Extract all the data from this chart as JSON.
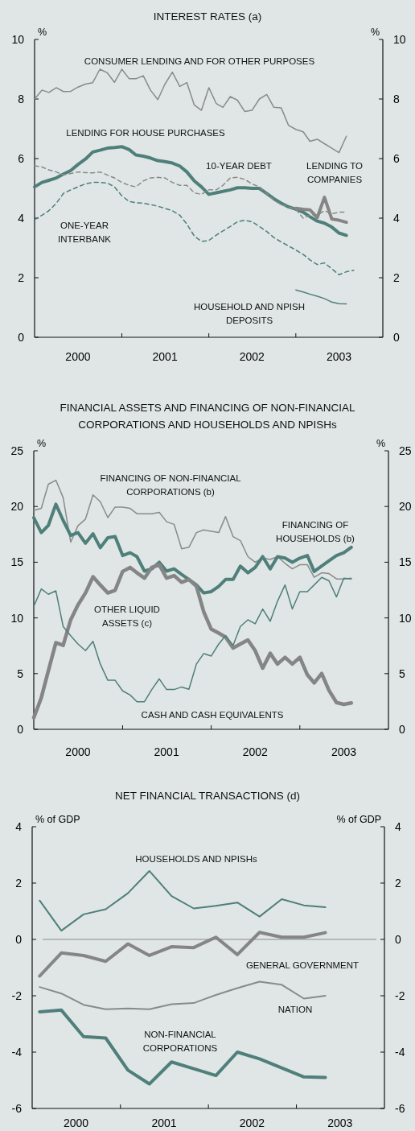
{
  "chart_data": [
    {
      "type": "line",
      "title": "INTEREST RATES (a)",
      "ylabel": "%",
      "y2label": "%",
      "ylim": [
        0,
        10
      ],
      "yticks": [
        0,
        2,
        4,
        6,
        8,
        10
      ],
      "y2lim": [
        0,
        10
      ],
      "y2ticks": [
        0,
        2,
        4,
        6,
        8,
        10
      ],
      "xlim": [
        "2000",
        "2004"
      ],
      "xticks": [
        {
          "value": "2000-07",
          "label": "2000"
        },
        {
          "value": "2001",
          "label": null
        },
        {
          "value": "2001-07",
          "label": "2001"
        },
        {
          "value": "2002",
          "label": null
        },
        {
          "value": "2002-07",
          "label": "2002"
        },
        {
          "value": "2003",
          "label": null
        },
        {
          "value": "2003-07",
          "label": "2003"
        }
      ],
      "x": [
        "2000-01",
        "2000-02",
        "2000-03",
        "2000-04",
        "2000-05",
        "2000-06",
        "2000-07",
        "2000-08",
        "2000-09",
        "2000-10",
        "2000-11",
        "2000-12",
        "2001-01",
        "2001-02",
        "2001-03",
        "2001-04",
        "2001-05",
        "2001-06",
        "2001-07",
        "2001-08",
        "2001-09",
        "2001-10",
        "2001-11",
        "2001-12",
        "2002-01",
        "2002-02",
        "2002-03",
        "2002-04",
        "2002-05",
        "2002-06",
        "2002-07",
        "2002-08",
        "2002-09",
        "2002-10",
        "2002-11",
        "2002-12",
        "2003-01",
        "2003-02",
        "2003-03",
        "2003-04",
        "2003-05",
        "2003-06",
        "2003-07",
        "2003-08",
        "2003-09"
      ],
      "series": [
        {
          "name": "CONSUMER LENDING AND FOR OTHER PURPOSES",
          "color": "#8a8a8a",
          "values": [
            8.0,
            8.3,
            8.22,
            8.38,
            8.25,
            8.26,
            8.4,
            8.5,
            8.55,
            9.0,
            8.88,
            8.56,
            9.0,
            8.68,
            8.68,
            8.78,
            8.3,
            7.98,
            8.5,
            8.9,
            8.42,
            8.55,
            7.8,
            7.62,
            8.38,
            7.85,
            7.72,
            8.08,
            7.96,
            7.58,
            7.62,
            8.0,
            8.15,
            7.72,
            7.7,
            7.12,
            6.98,
            6.9,
            6.58,
            6.65,
            6.5,
            6.35,
            6.2,
            6.75,
            null
          ]
        },
        {
          "name": "LENDING FOR HOUSE PURCHASES",
          "color": "#4f7f7a",
          "values": [
            5.05,
            5.2,
            5.27,
            5.35,
            5.48,
            5.6,
            5.8,
            5.98,
            6.22,
            6.28,
            6.35,
            6.37,
            6.4,
            6.3,
            6.12,
            6.08,
            6.02,
            5.93,
            5.9,
            5.85,
            5.75,
            5.55,
            5.25,
            5.05,
            4.8,
            4.85,
            4.9,
            4.95,
            5.02,
            5.02,
            5.0,
            5.0,
            4.83,
            4.65,
            4.5,
            4.38,
            4.3,
            4.2,
            4.05,
            3.9,
            3.83,
            3.7,
            3.5,
            3.42,
            null
          ]
        },
        {
          "name": "10-YEAR DEBT",
          "color": "#8a8a8a",
          "line_style": "dashed",
          "values": [
            5.76,
            5.72,
            5.62,
            5.55,
            5.45,
            5.5,
            5.55,
            5.53,
            5.52,
            5.55,
            5.45,
            5.35,
            5.2,
            5.1,
            5.05,
            5.25,
            5.35,
            5.37,
            5.35,
            5.2,
            5.1,
            5.1,
            4.85,
            4.8,
            4.95,
            4.95,
            5.1,
            5.35,
            5.37,
            5.3,
            5.15,
            5.05,
            4.83,
            4.6,
            4.45,
            4.38,
            4.3,
            4.0,
            4.1,
            4.1,
            4.25,
            4.15,
            4.2,
            4.2,
            null
          ]
        },
        {
          "name": "LENDING TO COMPANIES",
          "color": "#858585",
          "values": [
            null,
            null,
            null,
            null,
            null,
            null,
            null,
            null,
            null,
            null,
            null,
            null,
            null,
            null,
            null,
            null,
            null,
            null,
            null,
            null,
            null,
            null,
            null,
            null,
            null,
            null,
            null,
            null,
            null,
            null,
            null,
            null,
            null,
            null,
            null,
            null,
            4.33,
            4.3,
            4.28,
            4.02,
            4.7,
            3.97,
            3.93,
            3.86,
            null
          ]
        },
        {
          "name": "ONE-YEAR INTERBANK",
          "color": "#4f7f7a",
          "line_style": "dashed",
          "values": [
            3.95,
            4.1,
            4.25,
            4.5,
            4.83,
            4.95,
            5.05,
            5.15,
            5.2,
            5.2,
            5.18,
            5.05,
            4.75,
            4.56,
            4.52,
            4.5,
            4.46,
            4.4,
            4.33,
            4.25,
            4.1,
            3.8,
            3.4,
            3.22,
            3.25,
            3.43,
            3.57,
            3.72,
            3.88,
            3.93,
            3.88,
            3.72,
            3.55,
            3.35,
            3.2,
            3.07,
            2.93,
            2.78,
            2.6,
            2.44,
            2.5,
            2.3,
            2.1,
            2.2,
            2.25
          ]
        },
        {
          "name": "HOUSEHOLD AND NPISH DEPOSITS",
          "color": "#4f7f7a",
          "values": [
            null,
            null,
            null,
            null,
            null,
            null,
            null,
            null,
            null,
            null,
            null,
            null,
            null,
            null,
            null,
            null,
            null,
            null,
            null,
            null,
            null,
            null,
            null,
            null,
            null,
            null,
            null,
            null,
            null,
            null,
            null,
            null,
            null,
            null,
            null,
            null,
            1.59,
            1.52,
            1.45,
            1.38,
            1.3,
            1.18,
            1.13,
            1.12,
            null
          ]
        }
      ]
    },
    {
      "type": "line",
      "title": "FINANCIAL ASSETS AND FINANCING OF NON-FINANCIAL CORPORATIONS AND HOUSEHOLDS AND NPISHs",
      "ylabel": "%",
      "y2label": "%",
      "ylim": [
        0,
        25
      ],
      "yticks": [
        0,
        5,
        10,
        15,
        20,
        25
      ],
      "y2lim": [
        0,
        25
      ],
      "y2ticks": [
        0,
        5,
        10,
        15,
        20,
        25
      ],
      "xlim": [
        "2000",
        "2004"
      ],
      "xticks": [
        {
          "value": "2000-07",
          "label": "2000"
        },
        {
          "value": "2001",
          "label": null
        },
        {
          "value": "2001-07",
          "label": "2001"
        },
        {
          "value": "2002",
          "label": null
        },
        {
          "value": "2002-07",
          "label": "2002"
        },
        {
          "value": "2003",
          "label": null
        },
        {
          "value": "2003-07",
          "label": "2003"
        }
      ],
      "x": [
        "2000-01",
        "2000-02",
        "2000-03",
        "2000-04",
        "2000-05",
        "2000-06",
        "2000-07",
        "2000-08",
        "2000-09",
        "2000-10",
        "2000-11",
        "2000-12",
        "2001-01",
        "2001-02",
        "2001-03",
        "2001-04",
        "2001-05",
        "2001-06",
        "2001-07",
        "2001-08",
        "2001-09",
        "2001-10",
        "2001-11",
        "2001-12",
        "2002-01",
        "2002-02",
        "2002-03",
        "2002-04",
        "2002-05",
        "2002-06",
        "2002-07",
        "2002-08",
        "2002-09",
        "2002-10",
        "2002-11",
        "2002-12",
        "2003-01",
        "2003-02",
        "2003-03",
        "2003-04",
        "2003-05",
        "2003-06",
        "2003-07",
        "2003-08"
      ],
      "series": [
        {
          "name": "FINANCING OF NON-FINANCIAL CORPORATIONS (b)",
          "color": "#8a8a8a",
          "values": [
            19.66,
            19.83,
            22.0,
            22.36,
            20.8,
            16.8,
            18.27,
            18.87,
            21.04,
            20.43,
            19.0,
            19.95,
            19.95,
            19.83,
            19.35,
            19.35,
            19.35,
            19.47,
            18.63,
            18.4,
            16.2,
            16.34,
            17.66,
            17.9,
            17.78,
            17.66,
            19.1,
            17.3,
            16.94,
            15.5,
            15.0,
            15.37,
            15.25,
            15.5,
            14.9,
            14.4,
            14.77,
            14.77,
            13.64,
            14.05,
            13.98,
            13.5,
            13.5,
            13.57
          ]
        },
        {
          "name": "FINANCING OF HOUSEHOLDS (b)",
          "color": "#4f7f7a",
          "values": [
            19.0,
            17.66,
            18.3,
            20.2,
            18.75,
            17.4,
            17.66,
            16.7,
            17.55,
            16.3,
            17.2,
            17.3,
            15.6,
            15.85,
            15.5,
            14.2,
            14.4,
            15.0,
            14.2,
            14.4,
            13.9,
            13.45,
            12.96,
            12.24,
            12.36,
            12.84,
            13.45,
            13.45,
            14.65,
            14.05,
            14.53,
            15.5,
            14.4,
            15.5,
            15.37,
            15.0,
            15.37,
            15.6,
            14.17,
            14.65,
            15.13,
            15.6,
            15.85,
            16.34
          ]
        },
        {
          "name": "OTHER LIQUID ASSETS (c)",
          "color": "#858585",
          "values": [
            1.04,
            2.84,
            5.25,
            7.78,
            7.54,
            9.83,
            11.16,
            12.24,
            13.69,
            12.96,
            12.24,
            12.48,
            14.17,
            14.53,
            14.05,
            13.57,
            14.53,
            14.77,
            13.57,
            13.8,
            13.2,
            13.45,
            12.84,
            10.55,
            8.99,
            8.63,
            8.27,
            7.3,
            7.66,
            8.02,
            7.06,
            5.49,
            6.82,
            5.86,
            6.46,
            5.86,
            6.46,
            4.89,
            4.17,
            5.01,
            3.5,
            2.4,
            2.24,
            2.36
          ]
        },
        {
          "name": "CASH AND CASH EQUIVALENTS",
          "color": "#4f7f7a",
          "values": [
            11.04,
            12.6,
            12.12,
            12.43,
            9.23,
            8.4,
            7.66,
            7.06,
            7.9,
            5.86,
            4.4,
            4.4,
            3.45,
            3.08,
            2.48,
            2.48,
            3.57,
            4.53,
            3.57,
            3.57,
            3.8,
            3.6,
            5.86,
            6.8,
            6.58,
            7.66,
            8.4,
            7.54,
            9.23,
            9.83,
            9.47,
            10.8,
            9.7,
            11.5,
            12.96,
            10.8,
            12.36,
            12.36,
            12.96,
            13.64,
            13.33,
            11.88,
            13.57,
            13.5
          ]
        }
      ]
    },
    {
      "type": "line",
      "title": "NET FINANCIAL TRANSACTIONS (d)",
      "ylabel": "% of GDP",
      "y2label": "% of GDP",
      "ylim": [
        -6,
        4
      ],
      "yticks": [
        -6,
        -4,
        -2,
        0,
        2,
        4
      ],
      "y2lim": [
        -6,
        4
      ],
      "y2ticks": [
        -6,
        -4,
        -2,
        0,
        2,
        4
      ],
      "xlim": [
        "2000",
        "2004"
      ],
      "xticks": [
        {
          "value": "2000-07",
          "label": "2000"
        },
        {
          "value": "2001",
          "label": null
        },
        {
          "value": "2001-07",
          "label": "2001"
        },
        {
          "value": "2002",
          "label": null
        },
        {
          "value": "2002-07",
          "label": "2002"
        },
        {
          "value": "2003",
          "label": null
        },
        {
          "value": "2003-07",
          "label": "2003"
        }
      ],
      "x": [
        "2000-02",
        "2000-05",
        "2000-08",
        "2000-11",
        "2001-02",
        "2001-05",
        "2001-08",
        "2001-11",
        "2002-02",
        "2002-05",
        "2002-08",
        "2002-11",
        "2003-02",
        "2003-05"
      ],
      "ref_lines": [
        {
          "axis": "y",
          "value": 0,
          "color": "#8a8a8a"
        }
      ],
      "series": [
        {
          "name": "HOUSEHOLDS AND NPISHs",
          "color": "#4f7f7a",
          "values": [
            1.38,
            0.31,
            0.89,
            1.07,
            1.64,
            2.43,
            1.54,
            1.1,
            1.19,
            1.31,
            0.81,
            1.43,
            1.21,
            1.14
          ]
        },
        {
          "name": "GENERAL GOVERNMENT",
          "color": "#858585",
          "values": [
            -1.3,
            -0.48,
            -0.57,
            -0.78,
            -0.16,
            -0.57,
            -0.26,
            -0.29,
            0.08,
            -0.54,
            0.25,
            0.08,
            0.08,
            0.24
          ]
        },
        {
          "name": "NATION",
          "color": "#8a8a8a",
          "values": [
            -1.69,
            -1.92,
            -2.32,
            -2.48,
            -2.45,
            -2.48,
            -2.3,
            -2.26,
            -1.97,
            -1.73,
            -1.5,
            -1.61,
            -2.1,
            -2.0
          ]
        },
        {
          "name": "NON-FINANCIAL CORPORATIONS",
          "color": "#4f7f7a",
          "values": [
            -2.57,
            -2.51,
            -3.45,
            -3.5,
            -4.64,
            -5.13,
            -4.35,
            -4.59,
            -4.83,
            -4.0,
            -4.24,
            -4.56,
            -4.88,
            -4.9
          ]
        }
      ]
    }
  ]
}
